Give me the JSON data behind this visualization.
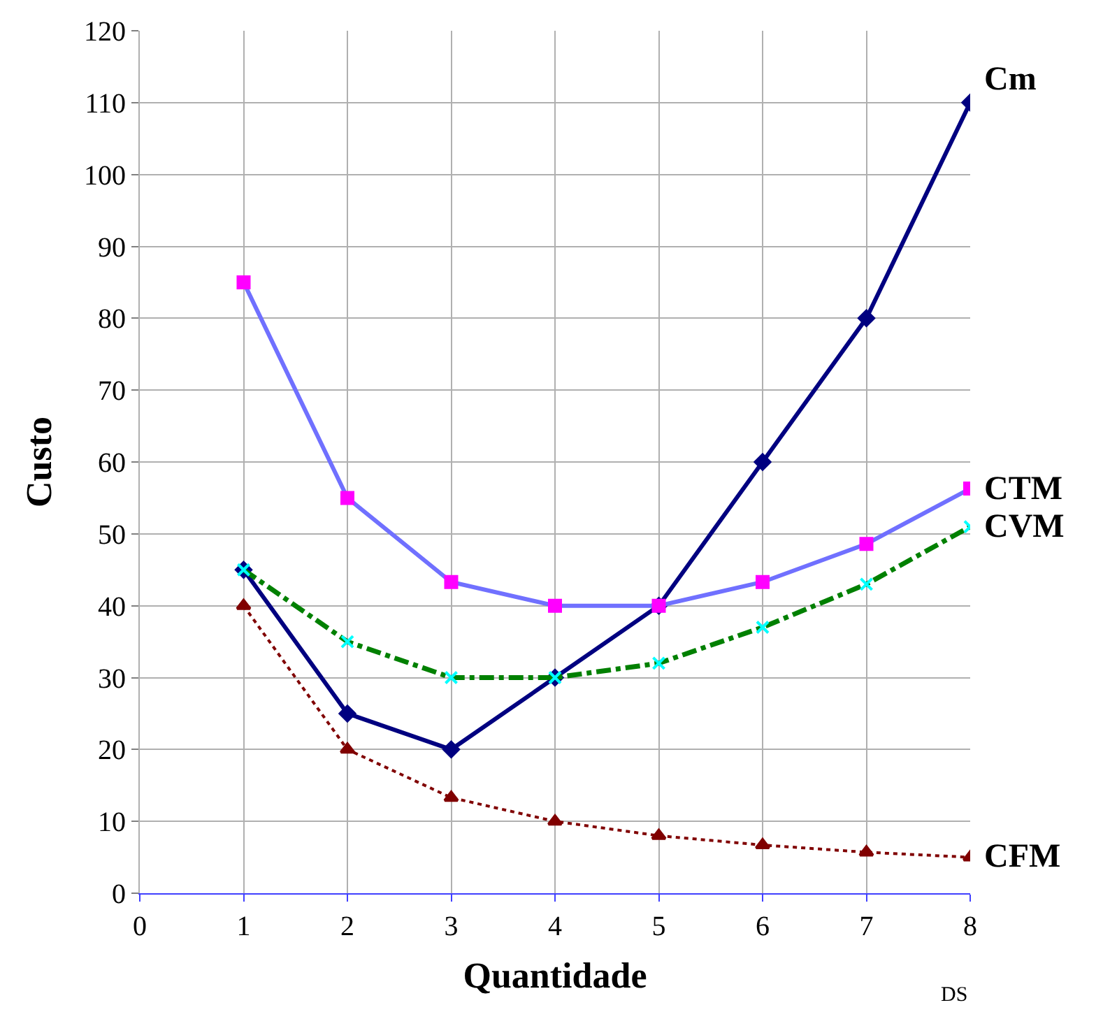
{
  "chart_data": {
    "type": "line",
    "xlabel": "Quantidade",
    "ylabel": "Custo",
    "x": [
      1,
      2,
      3,
      4,
      5,
      6,
      7,
      8
    ],
    "xlim": [
      0,
      8
    ],
    "xticks": [
      0,
      1,
      2,
      3,
      4,
      5,
      6,
      7,
      8
    ],
    "ylim": [
      0,
      120
    ],
    "yticks": [
      0,
      10,
      20,
      30,
      40,
      50,
      60,
      70,
      80,
      90,
      100,
      110,
      120
    ],
    "grid": true,
    "legend": false,
    "series": [
      {
        "name": "Cm",
        "color": "#000080",
        "values": [
          45,
          25,
          20,
          30,
          40,
          60,
          80,
          110
        ],
        "marker": "diamond",
        "line_style": "solid"
      },
      {
        "name": "CTM",
        "color": "#7070ff",
        "colors": [
          "#ff00ff",
          "#ff00ff",
          "#ff00ff",
          "#ff00ff",
          "#ff00ff",
          "#ff00ff",
          "#ff00ff",
          "#ff00ff"
        ],
        "values": [
          85,
          55,
          43.3,
          40,
          40,
          43.3,
          48.6,
          56.3
        ],
        "marker": "square",
        "line_style": "solid"
      },
      {
        "name": "CVM",
        "color": "#008000",
        "colors": [
          "#00ffff",
          "#00ffff",
          "#00ffff",
          "#00ffff",
          "#00ffff",
          "#00ffff",
          "#00ffff",
          "#00ffff"
        ],
        "values": [
          45,
          35,
          30,
          30,
          32,
          37,
          43,
          51
        ],
        "marker": "cross",
        "line_style": "dashed"
      },
      {
        "name": "CFM",
        "color": "#800000",
        "values": [
          40,
          20,
          13.3,
          10,
          8,
          6.7,
          5.7,
          5
        ],
        "marker": "triangle",
        "line_style": "dotted"
      }
    ],
    "annotations": [
      "DS"
    ]
  }
}
